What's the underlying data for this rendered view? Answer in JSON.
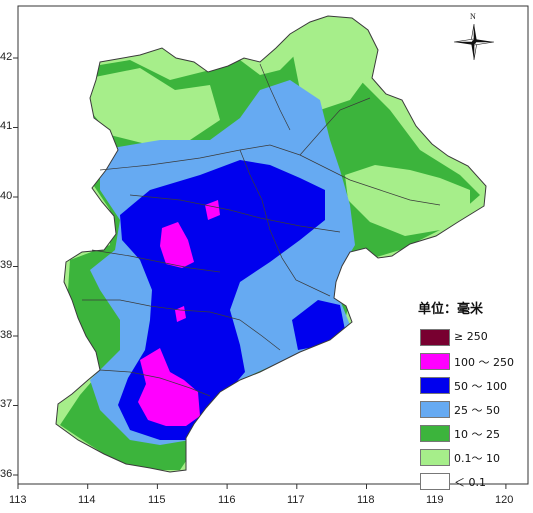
{
  "legend": {
    "title": "单位：毫米",
    "items": [
      {
        "label": "≥ 250",
        "color": "#780030"
      },
      {
        "label": "100 ～ 250",
        "color": "#ff00ff"
      },
      {
        "label": "50 ～ 100",
        "color": "#0000ee"
      },
      {
        "label": "25 ～ 50",
        "color": "#66aaf2"
      },
      {
        "label": "10 ～ 25",
        "color": "#3cb43c"
      },
      {
        "label": "0.1～ 10",
        "color": "#a6ee8a"
      },
      {
        "label": "＜ 0.1",
        "color": "#ffffff"
      }
    ]
  },
  "north_arrow": {
    "label": "N",
    "icon": "compass-rose-icon"
  },
  "axes": {
    "x_ticks": [
      "113",
      "114",
      "115",
      "116",
      "117",
      "118",
      "119",
      "120"
    ],
    "y_ticks": [
      "36",
      "37",
      "38",
      "39",
      "40",
      "41",
      "42"
    ]
  },
  "colors": {
    "frame": "#333333",
    "boundary": "#3a3a3a"
  }
}
